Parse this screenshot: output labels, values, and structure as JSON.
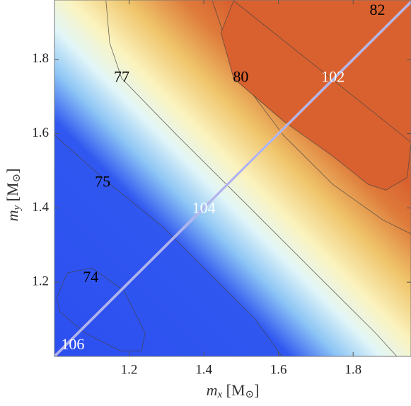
{
  "chart_data": {
    "type": "contour",
    "xlabel": [
      "m",
      "x",
      " [M",
      "⊙",
      "]"
    ],
    "ylabel": [
      "m",
      "y",
      " [M",
      "⊙",
      "]"
    ],
    "xlim": [
      1.0,
      1.955
    ],
    "ylim": [
      1.0,
      1.96
    ],
    "xticks": [
      1.2,
      1.4,
      1.6,
      1.8
    ],
    "yticks": [
      1.2,
      1.4,
      1.6,
      1.8
    ],
    "contours": [
      {
        "level": 74,
        "label_x": 1.097,
        "label_y": 1.21,
        "x": [
          1.006,
          1.034,
          1.101,
          1.186,
          1.243,
          1.233,
          1.176,
          1.082,
          1.015,
          1.006
        ],
        "y": [
          1.158,
          1.225,
          1.238,
          1.177,
          1.063,
          1.015,
          1.015,
          1.063,
          1.12,
          1.158
        ]
      },
      {
        "level": 75,
        "label_x": 1.129,
        "label_y": 1.467,
        "x": [
          1.0,
          1.139,
          1.29,
          1.423,
          1.537,
          1.609
        ],
        "y": [
          1.596,
          1.472,
          1.349,
          1.215,
          1.101,
          1.0
        ]
      },
      {
        "level": 77,
        "label_x": 1.18,
        "label_y": 1.749,
        "x": [
          1.138,
          1.148,
          1.18,
          1.328,
          1.537,
          1.727,
          1.86,
          1.917
        ],
        "y": [
          1.958,
          1.844,
          1.749,
          1.596,
          1.387,
          1.196,
          1.063,
          1.0
        ]
      },
      {
        "level": 80,
        "label_x": 1.499,
        "label_y": 1.749,
        "x": [
          1.423,
          1.461,
          1.499,
          1.613,
          1.746,
          1.879,
          1.955
        ],
        "y": [
          1.958,
          1.844,
          1.749,
          1.596,
          1.463,
          1.368,
          1.33
        ]
      },
      {
        "level": 82,
        "label_x": 1.865,
        "label_y": 1.93,
        "fill": "#d9612f",
        "x": [
          1.48,
          1.446,
          1.48,
          1.613,
          1.746,
          1.841,
          1.888,
          1.945,
          1.955
        ],
        "y": [
          1.958,
          1.872,
          1.749,
          1.634,
          1.539,
          1.463,
          1.448,
          1.482,
          1.577
        ]
      }
    ],
    "diagonal_labels": [
      {
        "value": 102,
        "x": 1.746,
        "y": 1.749
      },
      {
        "value": 104,
        "x": 1.4,
        "y": 1.396
      },
      {
        "value": 106,
        "x": 1.049,
        "y": 1.029
      }
    ]
  }
}
